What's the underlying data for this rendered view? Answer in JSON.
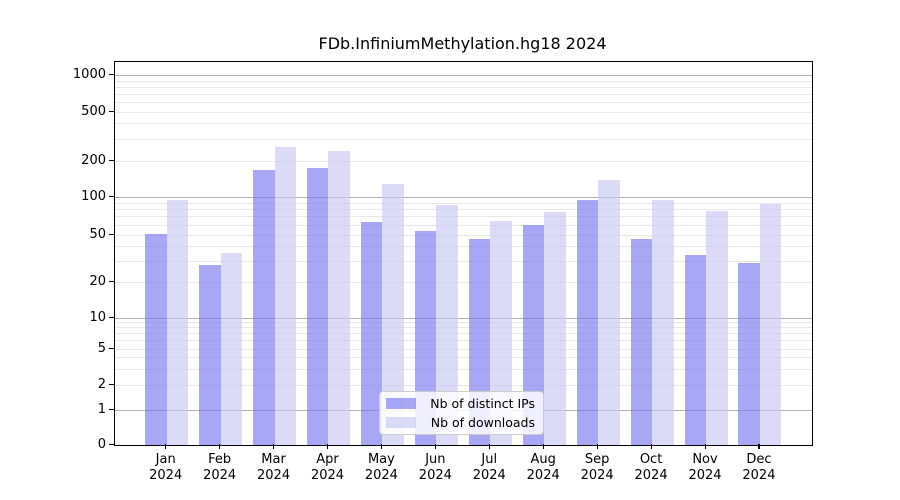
{
  "figure": {
    "title": "FDb.InfiniumMethylation.hg18 2024"
  },
  "chart_data": {
    "type": "bar",
    "title": "FDb.InfiniumMethylation.hg18 2024",
    "categories": [
      "Jan",
      "Feb",
      "Mar",
      "Apr",
      "May",
      "Jun",
      "Jul",
      "Aug",
      "Sep",
      "Oct",
      "Nov",
      "Dec"
    ],
    "year_label": "2024",
    "series": [
      {
        "name": "Nb of distinct IPs",
        "color_rgba": "rgba(120,120,240,0.65)",
        "color_hex_on_white": "#aaaaf9",
        "values": [
          51,
          28,
          170,
          175,
          63,
          54,
          46,
          60,
          95,
          46,
          34,
          29
        ]
      },
      {
        "name": "Nb of downloads",
        "color_rgba": "rgba(200,200,245,0.65)",
        "color_hex_on_white": "#dcdbf9",
        "values": [
          95,
          35,
          260,
          240,
          130,
          87,
          65,
          76,
          140,
          95,
          78,
          88
        ]
      }
    ],
    "xlabel": "",
    "ylabel": "",
    "yscale": "symlog",
    "yticks": [
      0,
      1,
      2,
      5,
      10,
      20,
      50,
      100,
      200,
      500,
      1000
    ],
    "ylim": [
      0,
      1400
    ],
    "grid": true,
    "legend_position": "lower center",
    "grid_major_color": "#b0b0b0",
    "grid_minor_color": "#e8e8e8"
  }
}
